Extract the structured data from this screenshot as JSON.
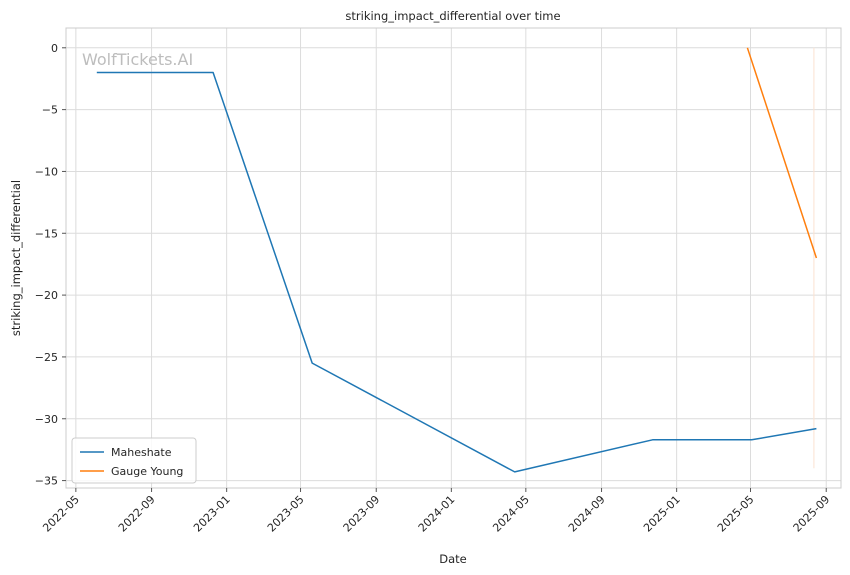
{
  "chart_data": {
    "type": "line",
    "title": "striking_impact_differential over time",
    "xlabel": "Date",
    "ylabel": "striking_impact_differential",
    "watermark": "WolfTickets.AI",
    "grid": true,
    "legend_position": "lower-left",
    "x_range": [
      "2022-04-15",
      "2025-09-25"
    ],
    "ylim": [
      -35.6,
      1.6
    ],
    "x_ticks": [
      "2022-05",
      "2022-09",
      "2023-01",
      "2023-05",
      "2023-09",
      "2024-01",
      "2024-05",
      "2024-09",
      "2025-01",
      "2025-05",
      "2025-09"
    ],
    "y_ticks": [
      0,
      -5,
      -10,
      -15,
      -20,
      -25,
      -30,
      -35
    ],
    "y_tick_labels": [
      "0",
      "−5",
      "−10",
      "−15",
      "−20",
      "−25",
      "−30",
      "−35"
    ],
    "series": [
      {
        "name": "Maheshate",
        "color": "#1f77b4",
        "points": [
          {
            "x": "2022-06-04",
            "y": -2
          },
          {
            "x": "2022-12-10",
            "y": -2
          },
          {
            "x": "2023-05-20",
            "y": -25.5
          },
          {
            "x": "2024-04-13",
            "y": -34.3
          },
          {
            "x": "2024-11-23",
            "y": -31.7
          },
          {
            "x": "2025-05-03",
            "y": -31.7
          },
          {
            "x": "2025-08-16",
            "y": -30.8
          }
        ]
      },
      {
        "name": "Gauge Young",
        "color": "#ff7f0e",
        "points": [
          {
            "x": "2025-04-26",
            "y": 0
          },
          {
            "x": "2025-08-16",
            "y": -17
          }
        ]
      }
    ],
    "faint_marker": {
      "x": "2025-08-12",
      "y_range": [
        0,
        -34
      ],
      "color": "#fbe3d2"
    }
  }
}
